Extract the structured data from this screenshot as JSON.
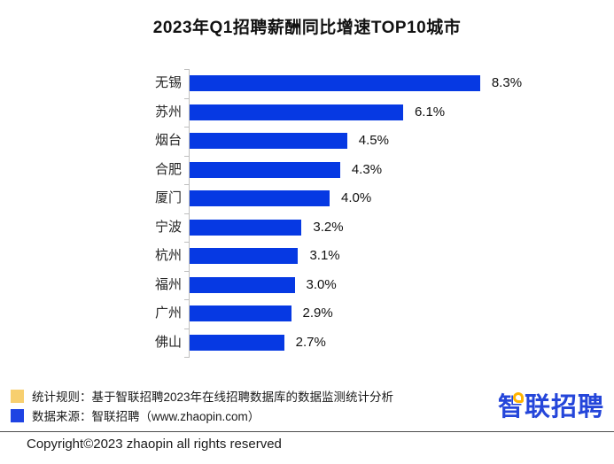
{
  "title": "2023年Q1招聘薪酬同比增速TOP10城市",
  "chart_data": {
    "type": "bar",
    "orientation": "horizontal",
    "title": "2023年Q1招聘薪酬同比增速TOP10城市",
    "categories": [
      "无锡",
      "苏州",
      "烟台",
      "合肥",
      "厦门",
      "宁波",
      "杭州",
      "福州",
      "广州",
      "佛山"
    ],
    "values": [
      8.3,
      6.1,
      4.5,
      4.3,
      4.0,
      3.2,
      3.1,
      3.0,
      2.9,
      2.7
    ],
    "value_labels": [
      "8.3%",
      "6.1%",
      "4.5%",
      "4.3%",
      "4.0%",
      "3.2%",
      "3.1%",
      "3.0%",
      "2.9%",
      "2.7%"
    ],
    "xlabel": "",
    "ylabel": "",
    "xlim": [
      0,
      8.8
    ],
    "grid": false,
    "legend_position": "none",
    "bar_color": "#0639E3",
    "axis_color": "#bfbfbf"
  },
  "footer": {
    "legend": [
      {
        "marker_color": "#F7CF6F",
        "label": "统计规则：基于智联招聘2023年在线招聘数据库的数据监测统计分析"
      },
      {
        "marker_color": "#1E43E3",
        "label": "数据来源：智联招聘（www.zhaopin.com）"
      }
    ],
    "copyright": "Copyright©2023 zhaopin all rights reserved"
  },
  "logo": {
    "char_1": "智",
    "rest": "联招聘",
    "blue": "#2546DA",
    "yellow": "#FFB400"
  }
}
